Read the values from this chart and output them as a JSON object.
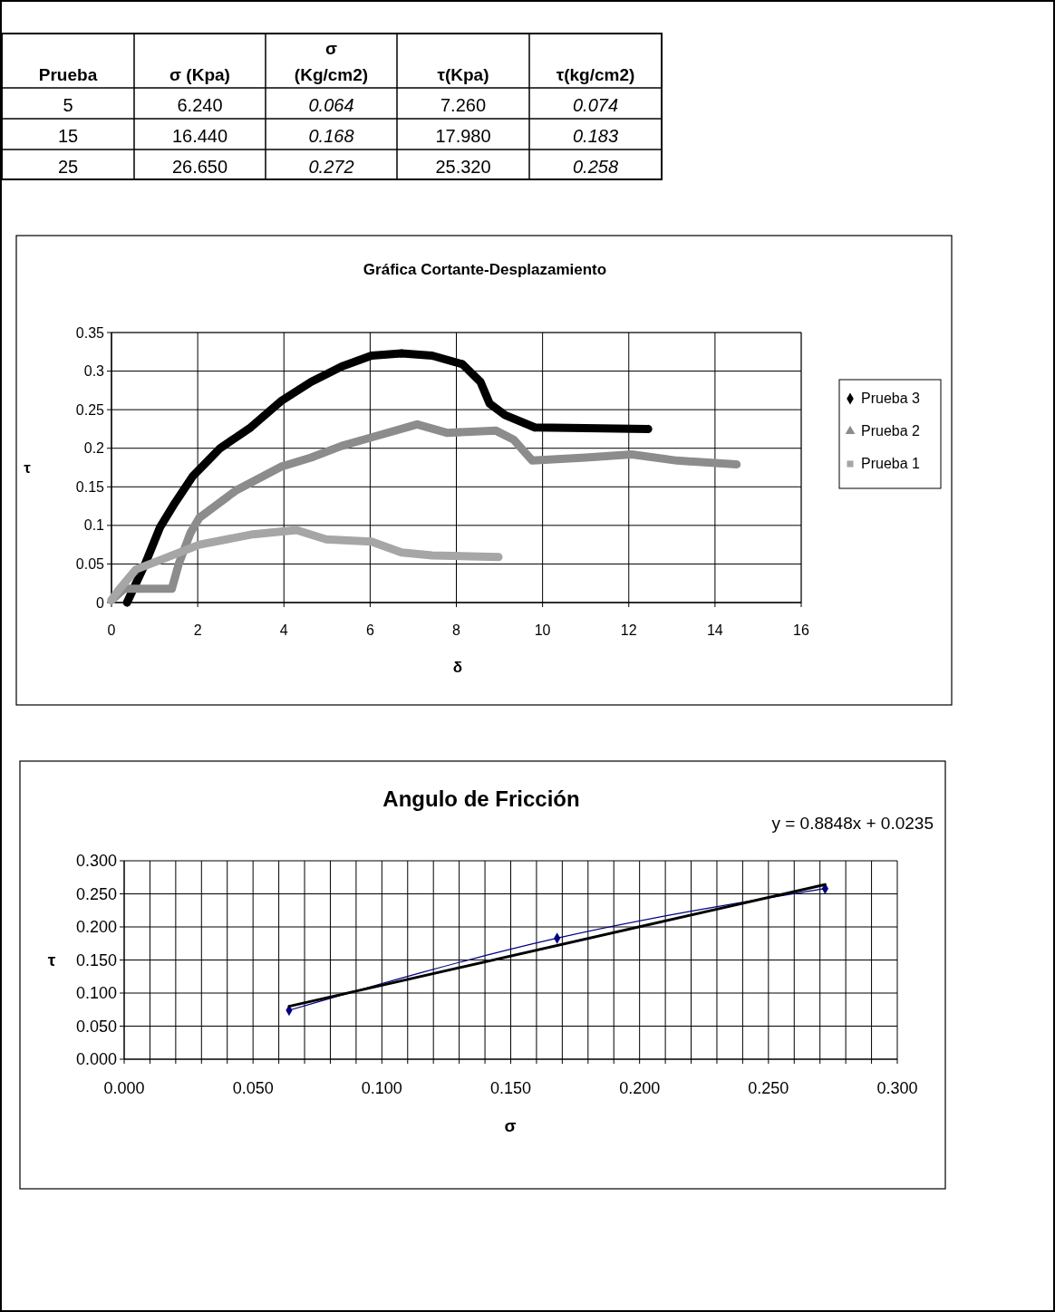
{
  "chart_data": [
    {
      "type": "other",
      "categories": [
        "Prueba",
        "σ (Kpa)",
        "σ (Kg/cm2)",
        "τ(Kpa)",
        "τ(kg/cm2)"
      ],
      "cell_labels": [
        [
          "5",
          "6.240",
          "0.064",
          "7.260",
          "0.074"
        ],
        [
          "15",
          "16.440",
          "0.168",
          "17.980",
          "0.183"
        ],
        [
          "25",
          "26.650",
          "0.272",
          "25.320",
          "0.258"
        ]
      ]
    },
    {
      "type": "line",
      "title": "Gráfica Cortante-Desplazamiento",
      "xlabel": "δ",
      "ylabel": "τ",
      "xlim": [
        0,
        16
      ],
      "xticks": [
        0,
        2,
        4,
        6,
        8,
        10,
        12,
        14,
        16
      ],
      "ylim": [
        0,
        0.35
      ],
      "yticks": [
        0,
        0.05,
        0.1,
        0.15,
        0.2,
        0.25,
        0.3,
        0.35
      ],
      "grid": true,
      "legend": "right",
      "series": [
        {
          "name": "Prueba 3",
          "color": "#000000",
          "marker": "diamond",
          "x": [
            0.36,
            0.78,
            1.13,
            1.47,
            1.89,
            2.52,
            3.23,
            3.93,
            4.63,
            5.34,
            6.03,
            6.73,
            7.44,
            8.14,
            8.56,
            8.77,
            9.13,
            9.82,
            11.0,
            12.45
          ],
          "values": [
            0,
            0.05,
            0.098,
            0.129,
            0.164,
            0.2,
            0.227,
            0.261,
            0.286,
            0.306,
            0.32,
            0.323,
            0.32,
            0.309,
            0.286,
            0.258,
            0.243,
            0.227,
            0.226,
            0.225
          ]
        },
        {
          "name": "Prueba 2",
          "color": "#8c8c8c",
          "marker": "triangle",
          "x": [
            0,
            0.3,
            1.4,
            1.56,
            1.83,
            2.04,
            2.88,
            3.93,
            4.63,
            5.34,
            6.03,
            7.09,
            7.78,
            8.91,
            9.33,
            9.76,
            11.0,
            12.07,
            13.12,
            14.5
          ],
          "values": [
            0.003,
            0.018,
            0.018,
            0.05,
            0.09,
            0.11,
            0.145,
            0.176,
            0.188,
            0.203,
            0.214,
            0.231,
            0.22,
            0.223,
            0.211,
            0.184,
            0.188,
            0.192,
            0.184,
            0.179
          ]
        },
        {
          "name": "Prueba 1",
          "color": "#a6a6a6",
          "marker": "square",
          "x": [
            0,
            0.15,
            0.57,
            1.13,
            2.04,
            3.23,
            4.29,
            4.98,
            6.03,
            6.73,
            7.44,
            8.98
          ],
          "values": [
            0.003,
            0.015,
            0.043,
            0.055,
            0.075,
            0.088,
            0.094,
            0.082,
            0.079,
            0.065,
            0.061,
            0.059
          ]
        }
      ]
    },
    {
      "type": "line",
      "title": "Angulo de Fricción",
      "xlabel": "σ",
      "ylabel": "τ",
      "annotations": [
        "y = 0.8848x + 0.0235"
      ],
      "xlim": [
        0,
        0.3
      ],
      "xticks": [
        {
          "value": 0,
          "label": "0.000"
        },
        {
          "value": 0.01,
          "label": null
        },
        {
          "value": 0.02,
          "label": null
        },
        {
          "value": 0.03,
          "label": null
        },
        {
          "value": 0.04,
          "label": null
        },
        {
          "value": 0.05,
          "label": "0.050"
        },
        {
          "value": 0.06,
          "label": null
        },
        {
          "value": 0.07,
          "label": null
        },
        {
          "value": 0.08,
          "label": null
        },
        {
          "value": 0.09,
          "label": null
        },
        {
          "value": 0.1,
          "label": "0.100"
        },
        {
          "value": 0.11,
          "label": null
        },
        {
          "value": 0.12,
          "label": null
        },
        {
          "value": 0.13,
          "label": null
        },
        {
          "value": 0.14,
          "label": null
        },
        {
          "value": 0.15,
          "label": "0.150"
        },
        {
          "value": 0.16,
          "label": null
        },
        {
          "value": 0.17,
          "label": null
        },
        {
          "value": 0.18,
          "label": null
        },
        {
          "value": 0.19,
          "label": null
        },
        {
          "value": 0.2,
          "label": "0.200"
        },
        {
          "value": 0.21,
          "label": null
        },
        {
          "value": 0.22,
          "label": null
        },
        {
          "value": 0.23,
          "label": null
        },
        {
          "value": 0.24,
          "label": null
        },
        {
          "value": 0.25,
          "label": "0.250"
        },
        {
          "value": 0.26,
          "label": null
        },
        {
          "value": 0.27,
          "label": null
        },
        {
          "value": 0.28,
          "label": null
        },
        {
          "value": 0.29,
          "label": null
        },
        {
          "value": 0.3,
          "label": "0.300"
        }
      ],
      "ylim": [
        0,
        0.3
      ],
      "yticks": [
        {
          "value": 0,
          "label": "0.000"
        },
        {
          "value": 0.05,
          "label": "0.050"
        },
        {
          "value": 0.1,
          "label": "0.100"
        },
        {
          "value": 0.15,
          "label": "0.150"
        },
        {
          "value": 0.2,
          "label": "0.200"
        },
        {
          "value": 0.25,
          "label": "0.250"
        },
        {
          "value": 0.3,
          "label": "0.300"
        }
      ],
      "grid": true,
      "series": [
        {
          "color": "#000080",
          "marker": "diamond",
          "x": [
            0.064,
            0.168,
            0.272
          ],
          "values": [
            0.074,
            0.183,
            0.258
          ]
        },
        {
          "color": "#000000",
          "marker": "none",
          "x": [
            0.064,
            0.272
          ],
          "values": [
            0.08,
            0.264
          ]
        }
      ]
    }
  ]
}
